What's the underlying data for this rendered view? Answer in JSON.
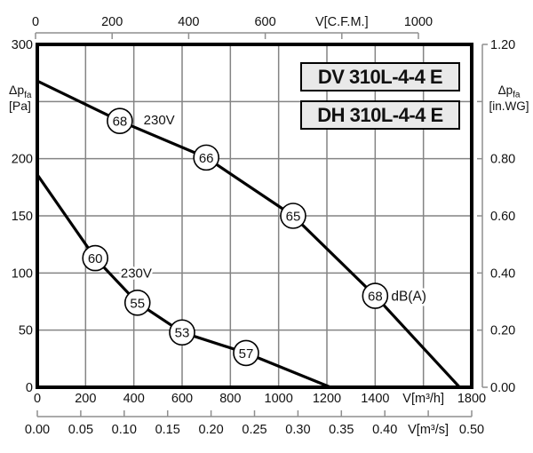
{
  "page": {
    "background": "#ffffff"
  },
  "title_boxes": [
    {
      "label": "DV 310L-4-4 E"
    },
    {
      "label": "DH 310L-4-4 E"
    }
  ],
  "axis_titles": {
    "left_dp": "Δp",
    "left_sub": "fa",
    "left_unit": "[Pa]",
    "right_dp": "Δp",
    "right_sub": "fa",
    "right_unit": "[in.WG]"
  },
  "colors": {
    "curve": "#000000",
    "frame": "#000000",
    "grid": "#848484",
    "detached_axis": "#8f8f8f",
    "marker_fill": "#ffffff",
    "box_bg": "#e9e9e9"
  },
  "chart_data": {
    "type": "line",
    "title": "DV 310L-4-4 E / DH 310L-4-4 E fan performance curves",
    "x_axis_bottom": {
      "unit_label": "V[m³/h]",
      "range": [
        0,
        1800
      ],
      "grid_step": 200,
      "tick_labels": [
        {
          "v": 0,
          "t": "0"
        },
        {
          "v": 200,
          "t": "200"
        },
        {
          "v": 400,
          "t": "400"
        },
        {
          "v": 600,
          "t": "600"
        },
        {
          "v": 800,
          "t": "800"
        },
        {
          "v": 1000,
          "t": "1000"
        },
        {
          "v": 1200,
          "t": "1200"
        },
        {
          "v": 1400,
          "t": "1400"
        },
        {
          "v": 1600,
          "t": "V[m³/h]"
        },
        {
          "v": 1800,
          "t": "1800"
        }
      ]
    },
    "x_axis_bottom2": {
      "unit_label": "V[m³/s]",
      "range": [
        0,
        0.5
      ],
      "tick_marks": [
        0,
        0.05,
        0.1,
        0.15,
        0.2,
        0.25,
        0.3,
        0.35,
        0.4,
        0.45,
        0.5
      ],
      "tick_labels": [
        {
          "v": 0,
          "t": "0.00"
        },
        {
          "v": 0.05,
          "t": "0.05"
        },
        {
          "v": 0.1,
          "t": "0.10"
        },
        {
          "v": 0.15,
          "t": "0.15"
        },
        {
          "v": 0.2,
          "t": "0.20"
        },
        {
          "v": 0.25,
          "t": "0.25"
        },
        {
          "v": 0.3,
          "t": "0.30"
        },
        {
          "v": 0.35,
          "t": "0.35"
        },
        {
          "v": 0.4,
          "t": "0.40"
        },
        {
          "v": 0.45,
          "t": "V[m³/s]"
        },
        {
          "v": 0.5,
          "t": "0.50"
        }
      ]
    },
    "x_axis_top": {
      "unit_label": "V[C.F.M.]",
      "range": [
        0,
        1000
      ],
      "tick_marks": [
        0,
        200,
        400,
        600,
        800,
        1000
      ],
      "tick_labels": [
        {
          "v": 0,
          "t": "0"
        },
        {
          "v": 200,
          "t": "200"
        },
        {
          "v": 400,
          "t": "400"
        },
        {
          "v": 600,
          "t": "600"
        },
        {
          "v": 800,
          "t": "V[C.F.M.]"
        },
        {
          "v": 1000,
          "t": "1000"
        }
      ]
    },
    "y_axis_left": {
      "unit_label": "Δp fa [Pa]",
      "range": [
        0,
        300
      ],
      "grid_step": 50,
      "tick_labels": [
        {
          "v": 300,
          "t": "300"
        },
        {
          "v": 200,
          "t": "200"
        },
        {
          "v": 150,
          "t": "150"
        },
        {
          "v": 100,
          "t": "100"
        },
        {
          "v": 50,
          "t": "50"
        },
        {
          "v": 0,
          "t": "0"
        }
      ]
    },
    "y_axis_right": {
      "unit_label": "Δp fa [in.WG]",
      "range": [
        0,
        1.2
      ],
      "tick_marks": [
        0,
        0.2,
        0.4,
        0.6,
        0.8,
        1.0,
        1.2
      ],
      "tick_labels": [
        {
          "v": 1.2,
          "t": "1.20"
        },
        {
          "v": 0.8,
          "t": "0.80"
        },
        {
          "v": 0.6,
          "t": "0.60"
        },
        {
          "v": 0.4,
          "t": "0.40"
        },
        {
          "v": 0.2,
          "t": "0.20"
        },
        {
          "v": 0,
          "t": "0.00"
        }
      ]
    },
    "series": [
      {
        "name": "high-speed-230V",
        "voltage_label": "230V",
        "voltage_label_at": [
          505,
          234
        ],
        "points": [
          [
            0,
            268
          ],
          [
            342,
            233
          ],
          [
            700,
            201
          ],
          [
            1060,
            150
          ],
          [
            1400,
            80
          ],
          [
            1750,
            0
          ]
        ],
        "markers": [
          {
            "x": 342,
            "y": 233,
            "label": "68"
          },
          {
            "x": 700,
            "y": 201,
            "label": "66"
          },
          {
            "x": 1060,
            "y": 150,
            "label": "65"
          },
          {
            "x": 1400,
            "y": 80,
            "label": "68",
            "suffix": "dB(A)"
          }
        ]
      },
      {
        "name": "low-speed-230V",
        "voltage_label": "230V",
        "voltage_label_at": [
          410,
          100
        ],
        "points": [
          [
            0,
            186
          ],
          [
            240,
            113
          ],
          [
            415,
            74
          ],
          [
            600,
            48
          ],
          [
            865,
            30
          ],
          [
            1215,
            0
          ]
        ],
        "markers": [
          {
            "x": 240,
            "y": 113,
            "label": "60"
          },
          {
            "x": 415,
            "y": 74,
            "label": "55"
          },
          {
            "x": 600,
            "y": 48,
            "label": "53"
          },
          {
            "x": 865,
            "y": 30,
            "label": "57"
          }
        ]
      }
    ],
    "noise_unit": "dB(A)",
    "legend_position": "none",
    "grid": true
  }
}
